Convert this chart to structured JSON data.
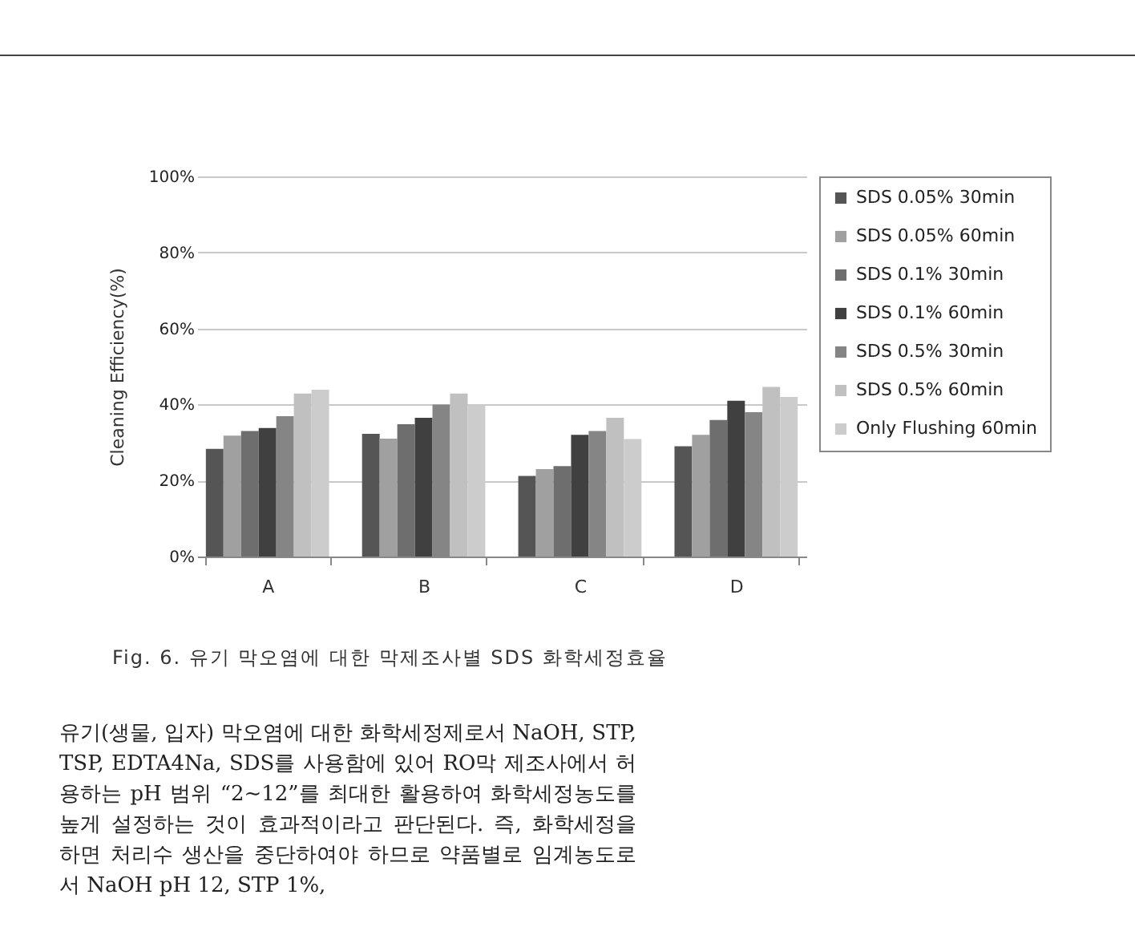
{
  "chart_data": {
    "type": "bar",
    "ylabel": "Cleaning Efficiency(%)",
    "categories": [
      "A",
      "B",
      "C",
      "D"
    ],
    "series": [
      {
        "name": "SDS 0.05% 30min",
        "color": "#555555",
        "values": [
          28.3,
          32.3,
          21.2,
          29
        ]
      },
      {
        "name": "SDS 0.05% 60min",
        "color": "#a0a0a0",
        "values": [
          31.8,
          31,
          23,
          32
        ]
      },
      {
        "name": "SDS 0.1% 30min",
        "color": "#6e6e6e",
        "values": [
          33,
          34.8,
          23.8,
          35.9
        ]
      },
      {
        "name": "SDS 0.1% 60min",
        "color": "#404040",
        "values": [
          33.8,
          36.5,
          32,
          41
        ]
      },
      {
        "name": "SDS 0.5% 30min",
        "color": "#858585",
        "values": [
          36.9,
          40,
          33,
          38
        ]
      },
      {
        "name": "SDS 0.5% 60min",
        "color": "#c0c0c0",
        "values": [
          42.9,
          42.9,
          36.5,
          44.6
        ]
      },
      {
        "name": "Only Flushing 60min",
        "color": "#cccccc",
        "values": [
          43.9,
          40,
          30.9,
          42
        ]
      }
    ],
    "ylim": [
      0,
      100
    ],
    "yticks": [
      {
        "value": 0,
        "label": "0%"
      },
      {
        "value": 20,
        "label": "20%"
      },
      {
        "value": 40,
        "label": "40%"
      },
      {
        "value": 60,
        "label": "60%"
      },
      {
        "value": 80,
        "label": "80%"
      },
      {
        "value": 100,
        "label": "100%"
      }
    ],
    "grid": "y",
    "legend": "right",
    "annotations": [
      "Fig. 6. 유기 막오염에 대한 막제조사별 SDS 화학세정효율",
      "유기(생물, 입자) 막오염에 대한 화학세정제로서 NaOH, STP, TSP, EDTA4Na, SDS를 사용함에 있어 RO막 제조사에서 허용하는 pH 범위 “2~12”를 최대한 활용하여 화학세정농도를 높게 설정하는 것이 효과적이라고 판단된다. 즉, 화학세정을 하면 처리수 생산을 중단하여야 하므로 약품별로 임계농도로서 NaOH pH 12, STP 1%,"
    ]
  }
}
